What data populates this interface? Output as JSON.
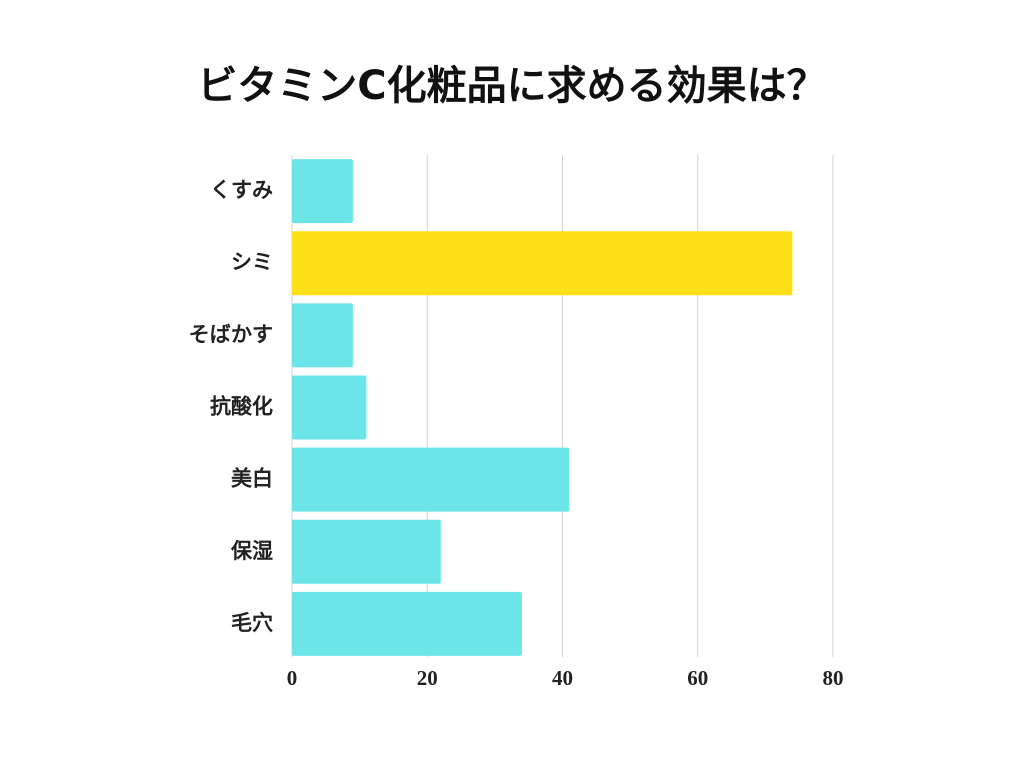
{
  "chart_data": {
    "type": "bar",
    "orientation": "horizontal",
    "title": "ビタミンC化粧品に求める効果は？",
    "categories": [
      "くすみ",
      "シミ",
      "そばかす",
      "抗酸化",
      "美白",
      "保湿",
      "毛穴"
    ],
    "values": [
      9,
      74,
      9,
      11,
      41,
      22,
      34
    ],
    "colors": [
      "#6ce5e8",
      "#fde018",
      "#6ce5e8",
      "#6ce5e8",
      "#6ce5e8",
      "#6ce5e8",
      "#6ce5e8"
    ],
    "xlim": [
      0,
      80
    ],
    "xticks": [
      0,
      20,
      40,
      60,
      80
    ],
    "grid": true
  }
}
